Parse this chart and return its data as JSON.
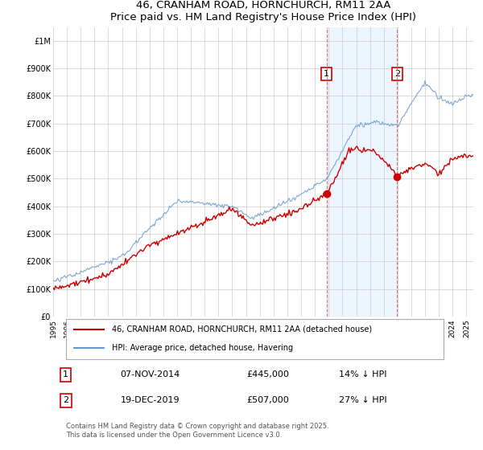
{
  "title": "46, CRANHAM ROAD, HORNCHURCH, RM11 2AA",
  "subtitle": "Price paid vs. HM Land Registry's House Price Index (HPI)",
  "yticks": [
    0,
    100000,
    200000,
    300000,
    400000,
    500000,
    600000,
    700000,
    800000,
    900000,
    1000000
  ],
  "ytick_labels": [
    "£0",
    "£100K",
    "£200K",
    "£300K",
    "£400K",
    "£500K",
    "£600K",
    "£700K",
    "£800K",
    "£900K",
    "£1M"
  ],
  "ylim": [
    0,
    1050000
  ],
  "sale1_date": "07-NOV-2014",
  "sale1_price": "£445,000",
  "sale1_hpi": "14% ↓ HPI",
  "sale1_x": 2014.85,
  "sale1_y": 445000,
  "sale2_date": "19-DEC-2019",
  "sale2_price": "£507,000",
  "sale2_hpi": "27% ↓ HPI",
  "sale2_x": 2019.97,
  "sale2_y": 507000,
  "legend_line1": "46, CRANHAM ROAD, HORNCHURCH, RM11 2AA (detached house)",
  "legend_line2": "HPI: Average price, detached house, Havering",
  "footer": "Contains HM Land Registry data © Crown copyright and database right 2025.\nThis data is licensed under the Open Government Licence v3.0.",
  "line_color_price": "#cc0000",
  "line_color_hpi": "#6699cc",
  "fill_color_hpi": "#ddeeff",
  "vline_color": "#cc6666",
  "background_color": "#ffffff",
  "grid_color": "#cccccc",
  "xmin": 1995,
  "xmax": 2025.5,
  "label1": "1",
  "label2": "2"
}
